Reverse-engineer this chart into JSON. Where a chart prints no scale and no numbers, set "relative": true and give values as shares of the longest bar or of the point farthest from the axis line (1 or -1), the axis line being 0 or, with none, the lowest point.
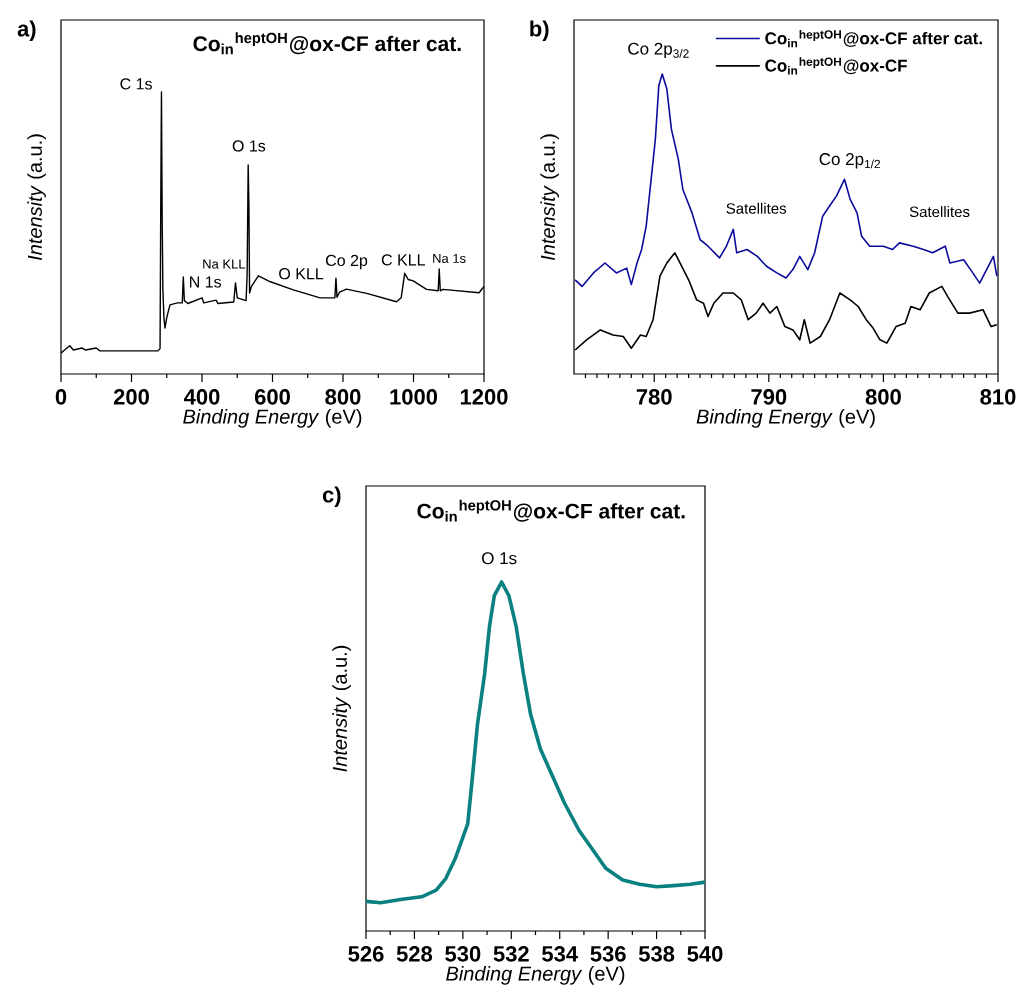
{
  "chart_data": [
    {
      "type": "line",
      "title": "Co$_{in}$$^{heptOH}$@ox-CF after cat.",
      "xlabel": "*Binding Energy* (eV)",
      "ylabel": "*Intensity* (a.u.)",
      "relative": true,
      "color": "#000000",
      "x": [
        0,
        10,
        25,
        35,
        60,
        70,
        100,
        110,
        200,
        275,
        281,
        283,
        285,
        287,
        289,
        292,
        295,
        300,
        309,
        330,
        344,
        347,
        350,
        360,
        400,
        405,
        440,
        445,
        490,
        495,
        500,
        525,
        528,
        531,
        533,
        535,
        540,
        560,
        594,
        659,
        735,
        777,
        780,
        783,
        790,
        810,
        870,
        952,
        965,
        975,
        985,
        999,
        1037,
        1070,
        1073,
        1076,
        1083,
        1186,
        1200
      ],
      "values": [
        0.074,
        0.085,
        0.1,
        0.085,
        0.092,
        0.085,
        0.092,
        0.082,
        0.082,
        0.082,
        0.09,
        0.6,
        1.0,
        0.55,
        0.3,
        0.2,
        0.163,
        0.2,
        0.245,
        0.252,
        0.252,
        0.344,
        0.26,
        0.25,
        0.27,
        0.252,
        0.262,
        0.25,
        0.255,
        0.323,
        0.27,
        0.26,
        0.35,
        0.741,
        0.6,
        0.287,
        0.31,
        0.348,
        0.327,
        0.298,
        0.27,
        0.27,
        0.34,
        0.272,
        0.29,
        0.301,
        0.285,
        0.256,
        0.27,
        0.357,
        0.335,
        0.33,
        0.3,
        0.295,
        0.372,
        0.295,
        0.3,
        0.288,
        0.31
      ],
      "xlim": [
        0,
        1200
      ],
      "xticks": [
        0,
        {
          "value": 100,
          "label": null
        },
        200,
        {
          "value": 300,
          "label": null
        },
        400,
        {
          "value": 500,
          "label": null
        },
        600,
        {
          "value": 700,
          "label": null
        },
        800,
        {
          "value": 900,
          "label": null
        },
        1000,
        {
          "value": 1100,
          "label": null
        },
        1200
      ],
      "annotations": [
        "a)",
        "C 1s",
        "O 1s",
        "N 1s",
        "Na KLL",
        "O KLL",
        "Co 2p",
        "C KLL",
        "Na 1s"
      ]
    },
    {
      "type": "line",
      "xlabel": "*Binding Energy* (eV)",
      "ylabel": "*Intensity* (a.u.)",
      "relative": true,
      "legend": "top right",
      "series": [
        {
          "name": "Co$_{in}$$^{heptOH}$@ox-CF after cat.",
          "color": "#0c0c9c",
          "x": [
            773.1,
            773.7,
            774.7,
            775.7,
            776.7,
            777.6,
            778.0,
            778.5,
            778.9,
            779.3,
            780.1,
            780.4,
            780.7,
            781.1,
            781.5,
            782.1,
            782.5,
            783.3,
            784.0,
            784.7,
            785.7,
            786.3,
            786.9,
            787.2,
            788.1,
            789.0,
            789.8,
            790.7,
            791.5,
            792.1,
            792.7,
            793.4,
            794.0,
            794.7,
            795.3,
            795.9,
            796.6,
            797.1,
            797.7,
            798.1,
            798.8,
            800.0,
            800.8,
            801.4,
            802.6,
            803.5,
            804.3,
            805.4,
            805.8,
            807.0,
            807.8,
            808.4,
            809.6,
            809.9
          ],
          "values": [
            0.314,
            0.292,
            0.337,
            0.37,
            0.337,
            0.353,
            0.298,
            0.37,
            0.415,
            0.493,
            0.783,
            0.961,
            1.0,
            0.95,
            0.816,
            0.716,
            0.615,
            0.537,
            0.448,
            0.426,
            0.387,
            0.426,
            0.482,
            0.404,
            0.415,
            0.392,
            0.359,
            0.337,
            0.32,
            0.348,
            0.392,
            0.348,
            0.404,
            0.526,
            0.56,
            0.593,
            0.649,
            0.582,
            0.537,
            0.459,
            0.426,
            0.426,
            0.415,
            0.437,
            0.426,
            0.415,
            0.404,
            0.426,
            0.37,
            0.381,
            0.337,
            0.303,
            0.392,
            0.326
          ]
        },
        {
          "name": "Co$_{in}$$^{heptOH}$@ox-CF",
          "color": "#000000",
          "x": [
            773.1,
            774.1,
            775.3,
            776.4,
            777.3,
            778.0,
            778.8,
            779.3,
            779.9,
            780.5,
            781.1,
            781.8,
            782.4,
            783.0,
            783.7,
            784.3,
            784.7,
            785.2,
            786.0,
            786.9,
            787.6,
            788.2,
            788.9,
            789.5,
            790.1,
            790.7,
            791.4,
            792.1,
            792.7,
            793.1,
            793.6,
            794.5,
            795.3,
            796.2,
            797.1,
            797.8,
            798.5,
            799.1,
            799.7,
            800.3,
            801.1,
            801.9,
            802.4,
            803.2,
            804.0,
            805.1,
            805.6,
            806.5,
            807.5,
            808.7,
            809.4,
            809.9
          ],
          "values": [
            0.08,
            0.114,
            0.147,
            0.13,
            0.125,
            0.086,
            0.13,
            0.125,
            0.181,
            0.326,
            0.37,
            0.404,
            0.359,
            0.314,
            0.247,
            0.236,
            0.192,
            0.236,
            0.27,
            0.27,
            0.247,
            0.181,
            0.203,
            0.236,
            0.203,
            0.225,
            0.158,
            0.147,
            0.114,
            0.181,
            0.103,
            0.125,
            0.181,
            0.27,
            0.247,
            0.225,
            0.181,
            0.153,
            0.114,
            0.103,
            0.158,
            0.169,
            0.225,
            0.214,
            0.27,
            0.292,
            0.259,
            0.203,
            0.203,
            0.214,
            0.158,
            0.164
          ]
        }
      ],
      "xlim": [
        773,
        810
      ],
      "xticks": [
        {
          "value": 774,
          "label": null
        },
        {
          "value": 775,
          "label": null
        },
        {
          "value": 776,
          "label": null
        },
        {
          "value": 777,
          "label": null
        },
        {
          "value": 778,
          "label": null
        },
        {
          "value": 779,
          "label": null
        },
        780,
        {
          "value": 781,
          "label": null
        },
        {
          "value": 782,
          "label": null
        },
        {
          "value": 783,
          "label": null
        },
        {
          "value": 784,
          "label": null
        },
        {
          "value": 785,
          "label": null
        },
        {
          "value": 786,
          "label": null
        },
        {
          "value": 787,
          "label": null
        },
        {
          "value": 788,
          "label": null
        },
        {
          "value": 789,
          "label": null
        },
        790,
        {
          "value": 791,
          "label": null
        },
        {
          "value": 792,
          "label": null
        },
        {
          "value": 793,
          "label": null
        },
        {
          "value": 794,
          "label": null
        },
        {
          "value": 795,
          "label": null
        },
        {
          "value": 796,
          "label": null
        },
        {
          "value": 797,
          "label": null
        },
        {
          "value": 798,
          "label": null
        },
        {
          "value": 799,
          "label": null
        },
        800,
        {
          "value": 801,
          "label": null
        },
        {
          "value": 802,
          "label": null
        },
        {
          "value": 803,
          "label": null
        },
        {
          "value": 804,
          "label": null
        },
        {
          "value": 805,
          "label": null
        },
        {
          "value": 806,
          "label": null
        },
        {
          "value": 807,
          "label": null
        },
        {
          "value": 808,
          "label": null
        },
        {
          "value": 809,
          "label": null
        },
        810
      ],
      "annotations": [
        "b)",
        "Co 2p$_{3/2}$",
        "Satellites",
        "Co 2p$_{1/2}$",
        "Satellites"
      ]
    },
    {
      "type": "line",
      "title": "Co$_{in}$$^{heptOH}$@ox-CF after cat.",
      "xlabel": "*Binding Energy* (eV)",
      "ylabel": "*Intensity* (a.u.)",
      "relative": true,
      "color": "#0a8080",
      "x": [
        526.0,
        526.6,
        527.5,
        528.3,
        528.9,
        529.3,
        529.7,
        530.2,
        530.4,
        530.6,
        530.9,
        531.1,
        531.3,
        531.6,
        531.9,
        532.2,
        532.5,
        532.8,
        533.2,
        533.7,
        534.2,
        534.8,
        535.4,
        535.9,
        536.6,
        537.3,
        538.0,
        538.7,
        539.4,
        540.0
      ],
      "values": [
        0.085,
        0.081,
        0.091,
        0.098,
        0.117,
        0.151,
        0.21,
        0.307,
        0.444,
        0.59,
        0.737,
        0.873,
        0.961,
        1.0,
        0.961,
        0.873,
        0.737,
        0.62,
        0.522,
        0.444,
        0.366,
        0.288,
        0.229,
        0.18,
        0.146,
        0.134,
        0.127,
        0.13,
        0.134,
        0.14
      ],
      "xlim": [
        526,
        540
      ],
      "xticks": [
        526,
        {
          "value": 527,
          "label": null
        },
        528,
        {
          "value": 529,
          "label": null
        },
        530,
        {
          "value": 531,
          "label": null
        },
        532,
        {
          "value": 533,
          "label": null
        },
        534,
        {
          "value": 535,
          "label": null
        },
        536,
        {
          "value": 537,
          "label": null
        },
        538,
        {
          "value": 539,
          "label": null
        },
        540
      ],
      "annotations": [
        "c)",
        "O 1s"
      ]
    }
  ]
}
